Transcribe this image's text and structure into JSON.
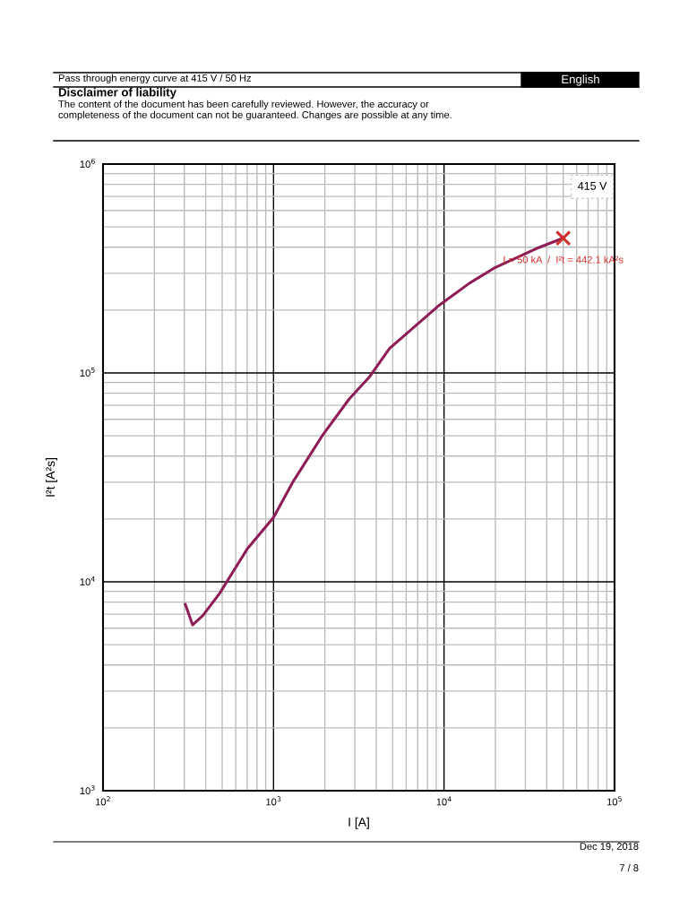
{
  "chart_data": {
    "type": "line",
    "title": "Pass through energy curve at 415 V / 50 Hz",
    "subtitle": "Disclaimer of liability",
    "xlabel": "I [A]",
    "ylabel": "I²t [A²s]",
    "log": "xy",
    "grid": true,
    "xlim": [
      100,
      100000
    ],
    "ylim": [
      1000,
      1000000
    ],
    "xticks": [
      {
        "value": 100,
        "label": "10$^{2}$"
      },
      {
        "value": 1000,
        "label": "10$^{3}$"
      },
      {
        "value": 10000,
        "label": "10$^{4}$"
      },
      {
        "value": 100000,
        "label": "10$^{5}$"
      }
    ],
    "yticks": [
      {
        "value": 1000,
        "label": "10$^{3}$"
      },
      {
        "value": 10000,
        "label": "10$^{4}$"
      },
      {
        "value": 100000,
        "label": "10$^{5}$"
      },
      {
        "value": 1000000,
        "label": "10$^{6}$"
      }
    ],
    "series": [
      {
        "color": "#8e1d55",
        "marker": "none",
        "line_style": "solid",
        "x": [
          304,
          335,
          385,
          483,
          548,
          705,
          1000,
          1306,
          1954,
          2780,
          3670,
          4790,
          9450,
          14100,
          20000,
          35900,
          50000
        ],
        "values": [
          7800,
          6220,
          6890,
          8810,
          10400,
          14460,
          20300,
          30300,
          50800,
          75100,
          96200,
          131000,
          212000,
          269000,
          320000,
          398000,
          442100
        ]
      },
      {
        "type": "scatter",
        "color": "#d0312d",
        "marker": "cross",
        "x": [
          50000
        ],
        "values": [
          442100
        ]
      }
    ],
    "annotations": [
      "English",
      "The content of the document has been carefully reviewed. However, the accuracy or",
      "completeness of the document can not be guaranteed. Changes are possible at any time.",
      "415 V",
      {
        "text": "I = 50 kA  /  I²t = 442.1 kA²s",
        "x": 50000,
        "y": 442100
      },
      "Dec 19, 2018",
      "7 / 8"
    ]
  }
}
